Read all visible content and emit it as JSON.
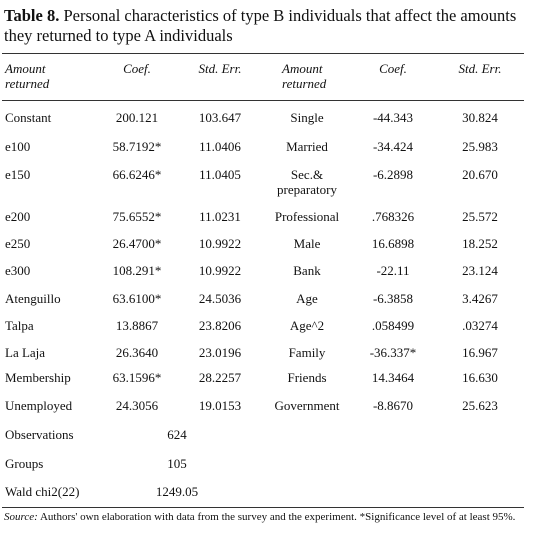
{
  "table": {
    "title_label": "Table 8.",
    "title": "Personal characteristics of type B individuals that affect the amounts they returned to type A individuals",
    "header": [
      "Amount returned",
      "Coef.",
      "Std. Err.",
      "Amount returned",
      "Coef.",
      "Std. Err."
    ],
    "rows": [
      [
        "Constant",
        "200.121",
        "103.647",
        "Single",
        "-44.343",
        "30.824"
      ],
      [
        "e100",
        "58.7192*",
        "11.0406",
        "Married",
        "-34.424",
        "25.983"
      ],
      [
        "e150",
        "66.6246*",
        "11.0405",
        "Sec.& preparatory",
        "-6.2898",
        "20.670"
      ],
      [
        "e200",
        "75.6552*",
        "11.0231",
        "Professional",
        ".768326",
        "25.572"
      ],
      [
        "e250",
        "26.4700*",
        "10.9922",
        "Male",
        "16.6898",
        "18.252"
      ],
      [
        "e300",
        "108.291*",
        "10.9922",
        "Bank",
        "-22.11",
        "23.124"
      ],
      [
        "Atenguillo",
        "63.6100*",
        "24.5036",
        "Age",
        "-6.3858",
        "3.4267"
      ],
      [
        "Talpa",
        "13.8867",
        "23.8206",
        "Age^2",
        ".058499",
        ".03274"
      ],
      [
        "La Laja",
        "26.3640",
        "23.0196",
        "Family",
        "-36.337*",
        "16.967"
      ],
      [
        "Membership",
        "63.1596*",
        "28.2257",
        "Friends",
        "14.3464",
        "16.630"
      ],
      [
        "Unemployed",
        "24.3056",
        "19.0153",
        "Government",
        "-8.8670",
        "25.623"
      ]
    ],
    "stats": [
      [
        "Observations",
        "624"
      ],
      [
        "Groups",
        "105"
      ],
      [
        "Wald chi2(22)",
        "1249.05"
      ]
    ],
    "source_label": "Source:",
    "source": "Authors' own elaboration with data from the survey and the experiment. *Significance level of at least 95%."
  }
}
